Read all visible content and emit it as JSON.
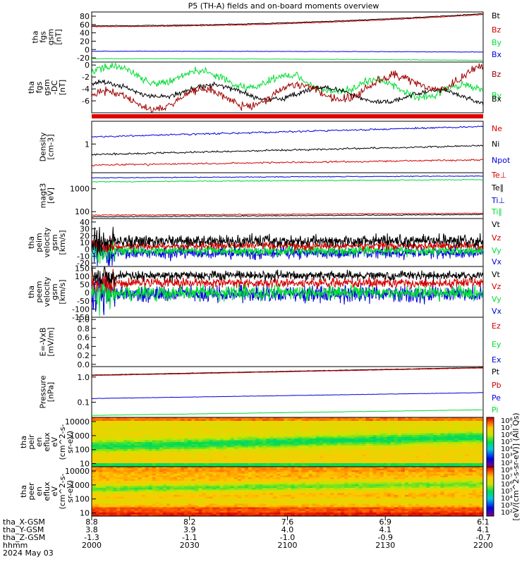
{
  "title": "P5 (TH-A) fields and on-board moments overview",
  "colors": {
    "black": "#000000",
    "red": "#d40000",
    "darkred": "#a00000",
    "green": "#00dd33",
    "blue": "#0000dd"
  },
  "chart_data": [
    {
      "type": "line",
      "panel": "fgs_gsm_nT",
      "ylabel_lines": [
        "tha",
        "fgs",
        "gsm",
        "[nT]"
      ],
      "ylim": [
        -30,
        90
      ],
      "yticks": [
        "80",
        "60",
        "40",
        "20",
        "0",
        "-20"
      ],
      "series": [
        {
          "name": "Bt",
          "color": "#000000",
          "start": 57,
          "end": 86,
          "noise": 0.6
        },
        {
          "name": "Bz",
          "color": "#d40000",
          "start": 55,
          "end": 84,
          "noise": 0.6
        },
        {
          "name": "By",
          "color": "#00dd33",
          "start": -22,
          "end": -26,
          "noise": 0.4
        },
        {
          "name": "Bx",
          "color": "#0000dd",
          "start": -4,
          "end": -6,
          "noise": 0.4
        }
      ]
    },
    {
      "type": "line",
      "panel": "fgs_gsm_dc",
      "ylabel_lines": [
        "tha",
        "fgs",
        "gsm",
        "-DC",
        "[nT]"
      ],
      "ylim": [
        -8,
        0.5
      ],
      "yticks": [
        "0",
        "-2",
        "-4",
        "-6"
      ],
      "series": [
        {
          "name": "Bz",
          "color": "#a00000",
          "start": -6.5,
          "end": -2,
          "noise": 0.6
        },
        {
          "name": "By",
          "color": "#00dd33",
          "start": -1,
          "end": -5,
          "noise": 0.5
        },
        {
          "name": "Bx",
          "color": "#000000",
          "start": -4,
          "end": -6,
          "noise": 0.4
        }
      ]
    },
    {
      "type": "line",
      "panel": "density",
      "ylabel_lines": [
        "Density",
        "[cm-3]"
      ],
      "ylim_log": true,
      "yticks": [
        "1"
      ],
      "series": [
        {
          "name": "Ne",
          "color": "#d40000",
          "start": 0.25,
          "end": 0.35
        },
        {
          "name": "Ni",
          "color": "#000000",
          "start": 0.5,
          "end": 0.9
        },
        {
          "name": "Npot",
          "color": "#0000dd",
          "start": 1.6,
          "end": 3.2
        }
      ]
    },
    {
      "type": "line",
      "panel": "temperature",
      "ylabel_lines": [
        "magt3",
        "[eV]"
      ],
      "ylim_log": true,
      "yticks": [
        "1000",
        "100"
      ],
      "series": [
        {
          "name": "Te⊥",
          "color": "#d40000",
          "start": 70,
          "end": 85
        },
        {
          "name": "Te∥",
          "color": "#000000",
          "start": 60,
          "end": 75
        },
        {
          "name": "Ti⊥",
          "color": "#0000dd",
          "start": 3000,
          "end": 3600
        },
        {
          "name": "Ti∥",
          "color": "#00dd33",
          "start": 2000,
          "end": 2500
        }
      ]
    },
    {
      "type": "line",
      "panel": "peim_velocity",
      "ylabel_lines": [
        "tha",
        "peim",
        "velocity",
        "gsm",
        "[km/s]"
      ],
      "ylim": [
        -25,
        45
      ],
      "yticks": [
        "40",
        "30",
        "20",
        "10",
        "0",
        "-10",
        "-20"
      ],
      "series": [
        {
          "name": "Vt",
          "color": "#000000"
        },
        {
          "name": "Vz",
          "color": "#d40000"
        },
        {
          "name": "Vy",
          "color": "#00dd33"
        },
        {
          "name": "Vx",
          "color": "#0000dd"
        }
      ]
    },
    {
      "type": "line",
      "panel": "peem_velocity",
      "ylabel_lines": [
        "tha",
        "peem",
        "velocity",
        "gsm",
        "[km/s]"
      ],
      "ylim": [
        -150,
        160
      ],
      "yticks": [
        "150",
        "100",
        "50",
        "0",
        "-50",
        "-100",
        "-150"
      ],
      "series": [
        {
          "name": "Vt",
          "color": "#000000"
        },
        {
          "name": "Vz",
          "color": "#d40000"
        },
        {
          "name": "Vy",
          "color": "#00dd33"
        },
        {
          "name": "Vx",
          "color": "#0000dd"
        }
      ]
    },
    {
      "type": "line",
      "panel": "efield",
      "ylabel_lines": [
        "E=-VxB",
        "[mV/m]"
      ],
      "ylim": [
        -0.05,
        1.05
      ],
      "yticks": [
        "1.0",
        "0.8",
        "0.6",
        "0.4",
        "0.2",
        "0.0"
      ],
      "series": [
        {
          "name": "Ez",
          "color": "#d40000"
        },
        {
          "name": "Ey",
          "color": "#00dd33"
        },
        {
          "name": "Ex",
          "color": "#0000dd"
        }
      ]
    },
    {
      "type": "line",
      "panel": "pressure",
      "ylabel_lines": [
        "Pressure",
        "[nPa]"
      ],
      "ylim_log": true,
      "yticks": [
        "1.0",
        "0.1"
      ],
      "series": [
        {
          "name": "Pt",
          "color": "#000000",
          "start": 1.2,
          "end": 2.4
        },
        {
          "name": "Pb",
          "color": "#d40000",
          "start": 1.15,
          "end": 2.3
        },
        {
          "name": "Pe",
          "color": "#0000dd",
          "start": 0.14,
          "end": 0.24
        },
        {
          "name": "Pi",
          "color": "#00dd33",
          "start": 0.03,
          "end": 0.05
        }
      ]
    },
    {
      "type": "heatmap",
      "panel": "peir_eflux",
      "ylabel_lines": [
        "tha",
        "peir",
        "en",
        "eflux",
        "eV",
        "(cm^2-s-",
        "sr-eV)"
      ],
      "yticks": [
        "10000",
        "1000",
        "100",
        "10"
      ]
    },
    {
      "type": "heatmap",
      "panel": "peer_eflux",
      "ylabel_lines": [
        "tha",
        "peer",
        "en",
        "eflux",
        "eV",
        "(cm^2-s-",
        "sr-eV)"
      ],
      "yticks": [
        "10000",
        "1000",
        "100",
        "10"
      ]
    }
  ],
  "colorbar": {
    "ticks": [
      "10⁸",
      "10⁷",
      "10⁶",
      "10⁵",
      "10⁴",
      "10³",
      "10²",
      "10⁸",
      "10⁷",
      "10⁶",
      "10⁵",
      "10⁴",
      "10³",
      "10²"
    ],
    "label": "[eV/(cm^2-s-sr-eV)] (All Qs)"
  },
  "xaxis": {
    "rows": [
      {
        "label": "tha_X-GSM",
        "values": [
          "8.8",
          "8.2",
          "7.6",
          "6.9",
          "6.1"
        ]
      },
      {
        "label": "tha_Y-GSM",
        "values": [
          "3.8",
          "3.9",
          "4.0",
          "4.1",
          "4.1"
        ]
      },
      {
        "label": "tha_Z-GSM",
        "values": [
          "-1.3",
          "-1.1",
          "-1.0",
          "-0.9",
          "-0.7"
        ]
      },
      {
        "label": "hhmm",
        "values": [
          "2000",
          "2030",
          "2100",
          "2130",
          "2200"
        ]
      }
    ],
    "date": "2024 May 03"
  }
}
